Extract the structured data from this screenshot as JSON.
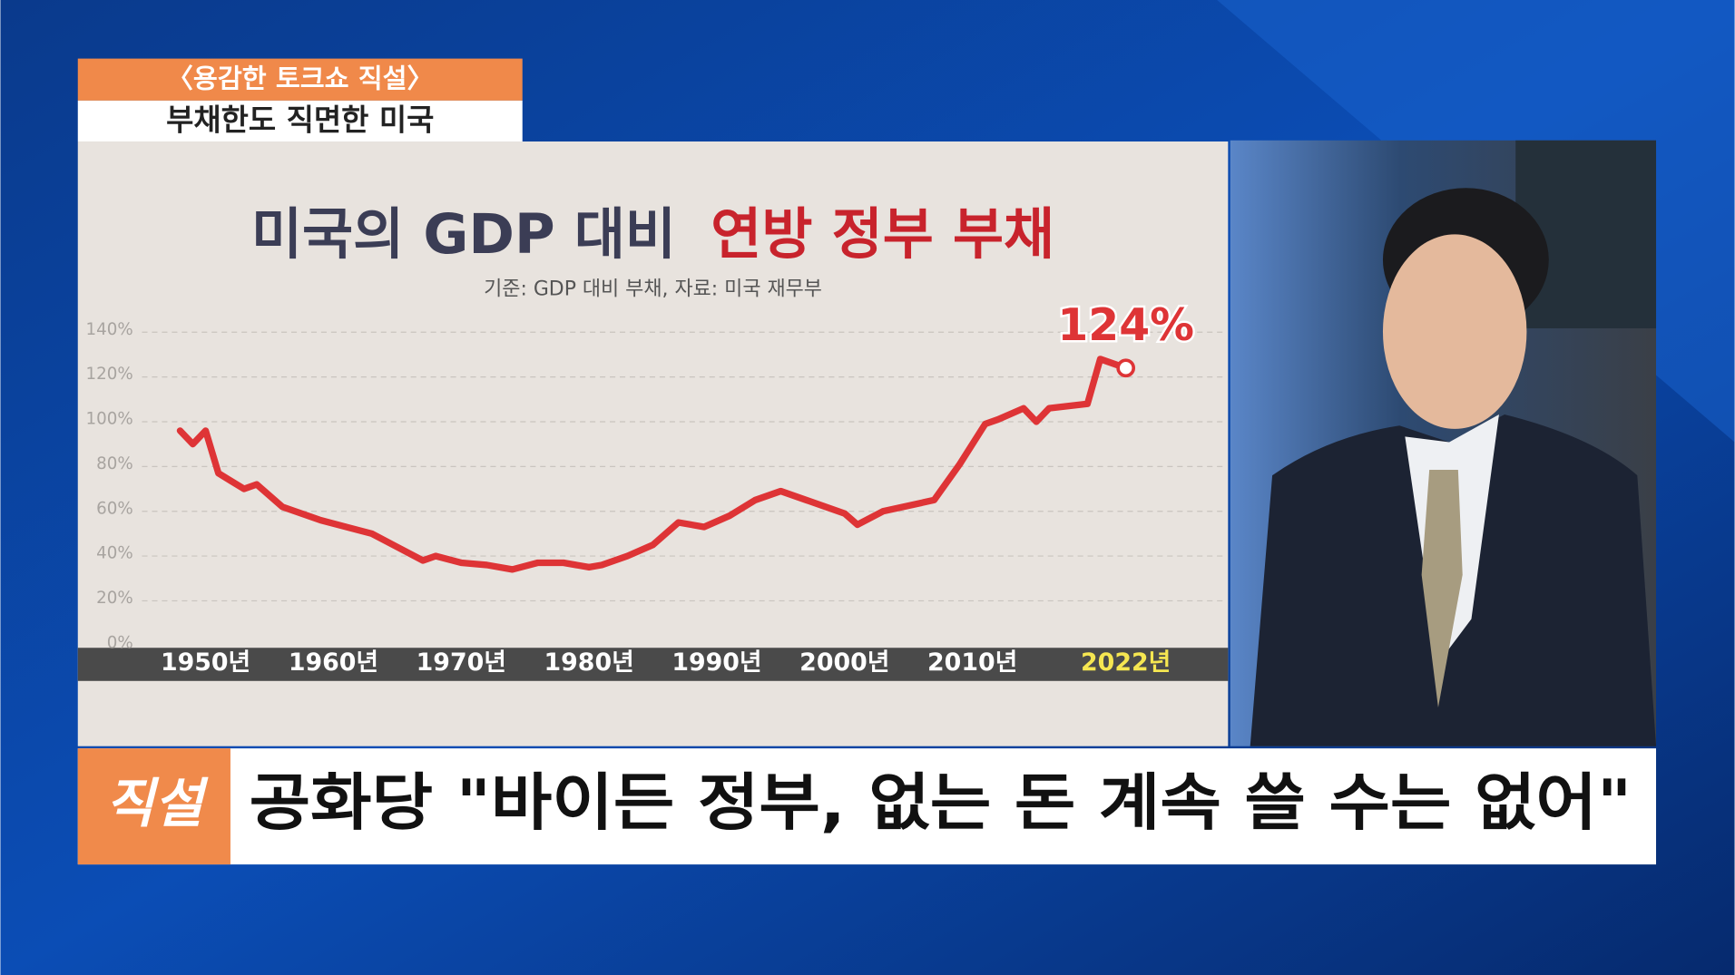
{
  "program": {
    "label": "〈용감한 토크쇼 직설〉",
    "topic": "부채한도 직면한 미국"
  },
  "chart_data": {
    "type": "line",
    "title": "미국의 GDP 대비",
    "title_highlight": "연방 정부 부채",
    "subtitle": "기준: GDP 대비 부채, 자료: 미국 재무부",
    "x": [
      1948,
      1949,
      1950,
      1951,
      1953,
      1954,
      1956,
      1959,
      1961,
      1963,
      1965,
      1967,
      1968,
      1970,
      1972,
      1974,
      1976,
      1978,
      1980,
      1981,
      1983,
      1985,
      1987,
      1989,
      1991,
      1993,
      1995,
      1997,
      2000,
      2001,
      2003,
      2007,
      2009,
      2011,
      2012,
      2014,
      2015,
      2016,
      2019,
      2020,
      2022
    ],
    "series": [
      {
        "color": "#de3436",
        "values": [
          96,
          90,
          96,
          77,
          70,
          72,
          62,
          56,
          53,
          50,
          44,
          38,
          40,
          37,
          36,
          34,
          37,
          37,
          35,
          36,
          40,
          45,
          55,
          53,
          58,
          65,
          69,
          65,
          59,
          54,
          60,
          65,
          81,
          99,
          101,
          106,
          100,
          106,
          108,
          128,
          124
        ],
        "value_labels": [
          null,
          null,
          null,
          null,
          null,
          null,
          null,
          null,
          null,
          null,
          null,
          null,
          null,
          null,
          null,
          null,
          null,
          null,
          null,
          null,
          null,
          null,
          null,
          null,
          null,
          null,
          null,
          null,
          null,
          null,
          null,
          null,
          null,
          null,
          null,
          null,
          null,
          null,
          null,
          null,
          "124%"
        ]
      }
    ],
    "xlim": [
      1940,
      2030
    ],
    "xticks": [
      {
        "value": 1950,
        "label": "1950년"
      },
      {
        "value": 1960,
        "label": "1960년"
      },
      {
        "value": 1970,
        "label": "1970년"
      },
      {
        "value": 1980,
        "label": "1980년"
      },
      {
        "value": 1990,
        "label": "1990년"
      },
      {
        "value": 2000,
        "label": "2000년"
      },
      {
        "value": 2010,
        "label": "2010년"
      },
      {
        "value": 2022,
        "label": "2022년"
      }
    ],
    "ylim": [
      0,
      140
    ],
    "yticks": [
      {
        "value": 0,
        "label": "0%"
      },
      {
        "value": 20,
        "label": "20%"
      },
      {
        "value": 40,
        "label": "40%"
      },
      {
        "value": 60,
        "label": "60%"
      },
      {
        "value": 80,
        "label": "80%"
      },
      {
        "value": 100,
        "label": "100%"
      },
      {
        "value": 120,
        "label": "120%"
      },
      {
        "value": 140,
        "label": "140%"
      }
    ],
    "grid": true
  },
  "caption": {
    "badge": "직설",
    "headline": "공화당 \"바이든 정부, 없는 돈 계속 쓸 수는 없어\""
  }
}
